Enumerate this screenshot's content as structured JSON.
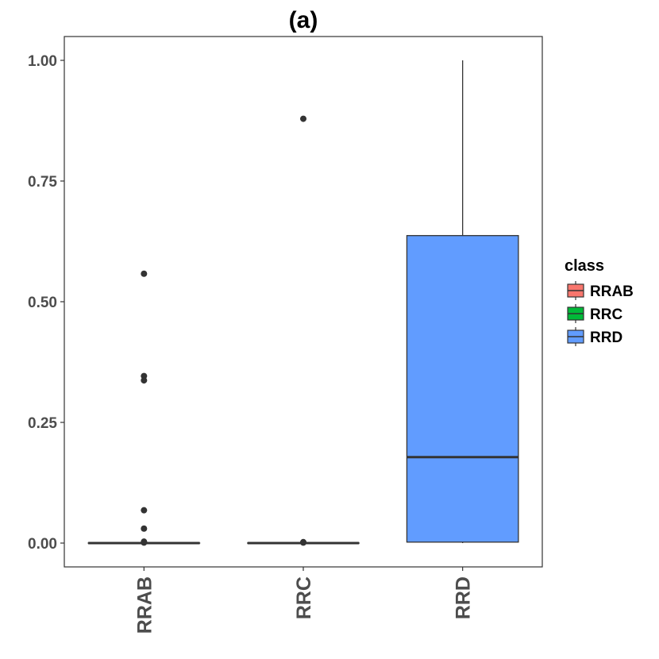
{
  "chart_data": {
    "type": "box",
    "title": "(a)",
    "xlabel": "",
    "ylabel": "",
    "ylim": [
      -0.05,
      1.05
    ],
    "y_ticks": [
      {
        "value": 0.0,
        "label": "0.00"
      },
      {
        "value": 0.25,
        "label": "0.25"
      },
      {
        "value": 0.5,
        "label": "0.50"
      },
      {
        "value": 0.75,
        "label": "0.75"
      },
      {
        "value": 1.0,
        "label": "1.00"
      }
    ],
    "categories": [
      "RRAB",
      "RRC",
      "RRD"
    ],
    "series": [
      {
        "name": "RRAB",
        "color": "#F8766D",
        "min": 0.0,
        "q1": 0.0,
        "median": 0.0,
        "q3": 0.0,
        "max": 0.0,
        "outliers": [
          0.558,
          0.346,
          0.337,
          0.068,
          0.03,
          0.003,
          0.001
        ]
      },
      {
        "name": "RRC",
        "color": "#00BA38",
        "min": 0.0,
        "q1": 0.0,
        "median": 0.0,
        "q3": 0.0,
        "max": 0.0,
        "outliers": [
          0.879,
          0.002,
          0.001
        ]
      },
      {
        "name": "RRD",
        "color": "#619CFF",
        "min": 0.0,
        "q1": 0.002,
        "median": 0.178,
        "q3": 0.637,
        "max": 1.0,
        "outliers": []
      }
    ],
    "legend": {
      "title": "class",
      "position": "right",
      "entries": [
        "RRAB",
        "RRC",
        "RRD"
      ]
    },
    "grid": false
  }
}
